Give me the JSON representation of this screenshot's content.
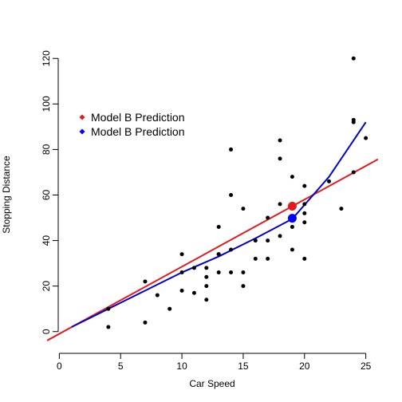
{
  "chart_data": {
    "type": "scatter",
    "title": "",
    "xlabel": "Car Speed",
    "ylabel": "Stopping Distance",
    "xlim": [
      -1,
      26
    ],
    "ylim": [
      -5,
      125
    ],
    "xticks": [
      0,
      5,
      10,
      15,
      20,
      25
    ],
    "yticks": [
      0,
      20,
      40,
      60,
      80,
      100,
      120
    ],
    "grid": false,
    "legend_position": "top-left",
    "points": {
      "color": "#000000",
      "x": [
        4,
        4,
        7,
        7,
        8,
        9,
        10,
        10,
        10,
        11,
        11,
        12,
        12,
        12,
        12,
        13,
        13,
        13,
        13,
        14,
        14,
        14,
        14,
        15,
        15,
        15,
        16,
        16,
        17,
        17,
        17,
        18,
        18,
        18,
        18,
        19,
        19,
        19,
        20,
        20,
        20,
        20,
        20,
        22,
        23,
        24,
        24,
        24,
        24,
        25
      ],
      "y": [
        2,
        10,
        4,
        22,
        16,
        10,
        18,
        26,
        34,
        17,
        28,
        14,
        20,
        24,
        28,
        26,
        34,
        34,
        46,
        26,
        36,
        60,
        80,
        20,
        26,
        54,
        32,
        40,
        32,
        40,
        50,
        42,
        56,
        76,
        84,
        36,
        46,
        68,
        32,
        48,
        52,
        56,
        64,
        66,
        54,
        70,
        92,
        93,
        120,
        85
      ]
    },
    "series": [
      {
        "name": "Model B Prediction",
        "kind": "line",
        "color": "#e41a1c",
        "x": [
          -1,
          26
        ],
        "y": [
          -3.93,
          75.72
        ]
      },
      {
        "name": "Model B Prediction",
        "kind": "line",
        "color": "#0000cc",
        "x": [
          1,
          4,
          7,
          10,
          13,
          16,
          19,
          22,
          25
        ],
        "y": [
          2,
          10,
          18,
          26,
          33,
          41,
          49.5,
          68,
          92
        ]
      }
    ],
    "highlights": [
      {
        "x": 19,
        "y": 55.1,
        "color": "#e41a1c"
      },
      {
        "x": 19,
        "y": 49.8,
        "color": "#0000ff"
      }
    ],
    "legend": [
      {
        "label": "Model B Prediction",
        "color": "#e41a1c"
      },
      {
        "label": "Model B Prediction",
        "color": "#0000ff"
      }
    ]
  }
}
